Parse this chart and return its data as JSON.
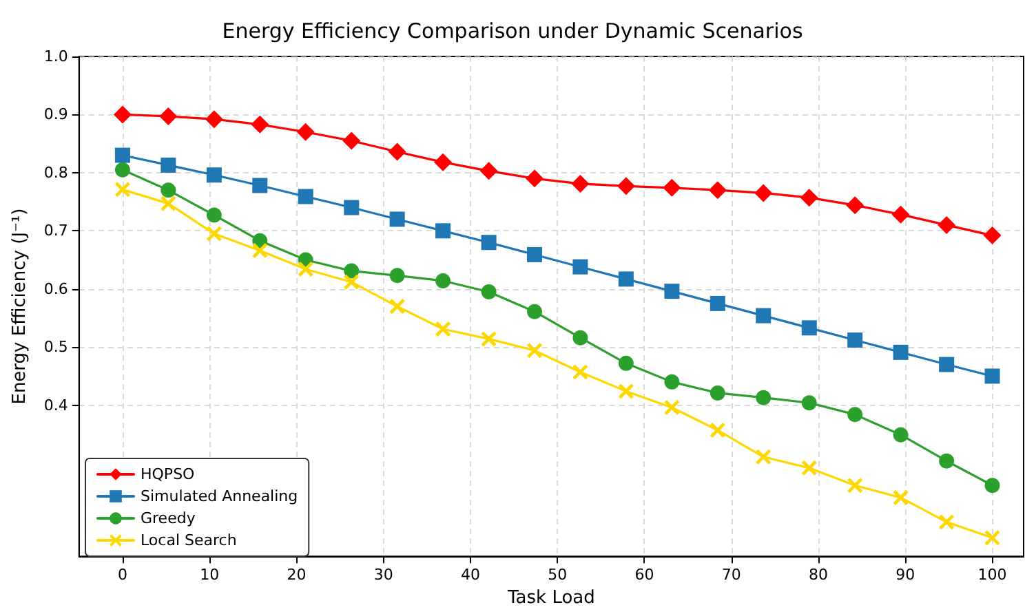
{
  "chart_data": {
    "type": "line",
    "title": "Energy Efficiency Comparison under Dynamic Scenarios",
    "xlabel": "Task Load",
    "ylabel": "Energy Efficiency (J⁻¹)",
    "x": [
      0,
      5.26,
      10.53,
      15.79,
      21.05,
      26.32,
      31.58,
      36.84,
      42.11,
      47.37,
      52.63,
      57.89,
      63.16,
      68.42,
      73.68,
      78.95,
      84.21,
      89.47,
      94.74,
      100
    ],
    "series": [
      {
        "name": "HQPSO",
        "color": "#ff0000",
        "marker": "diamond",
        "values": [
          0.9,
          0.897,
          0.892,
          0.883,
          0.87,
          0.855,
          0.836,
          0.818,
          0.803,
          0.79,
          0.781,
          0.777,
          0.774,
          0.77,
          0.765,
          0.757,
          0.744,
          0.728,
          0.71,
          0.692
        ]
      },
      {
        "name": "Simulated Annealing",
        "color": "#1f77b4",
        "marker": "square",
        "values": [
          0.83,
          0.813,
          0.796,
          0.778,
          0.759,
          0.74,
          0.72,
          0.7,
          0.68,
          0.659,
          0.638,
          0.617,
          0.596,
          0.575,
          0.554,
          0.533,
          0.512,
          0.491,
          0.47,
          0.45
        ]
      },
      {
        "name": "Greedy",
        "color": "#2ca02c",
        "marker": "circle",
        "values": [
          0.805,
          0.77,
          0.727,
          0.683,
          0.65,
          0.631,
          0.623,
          0.614,
          0.595,
          0.561,
          0.516,
          0.472,
          0.44,
          0.421,
          0.413,
          0.404,
          0.384,
          0.349,
          0.304,
          0.262
        ]
      },
      {
        "name": "Local Search",
        "color": "#ffd700",
        "marker": "cross",
        "values": [
          0.771,
          0.747,
          0.695,
          0.666,
          0.634,
          0.612,
          0.57,
          0.531,
          0.514,
          0.494,
          0.457,
          0.424,
          0.396,
          0.357,
          0.311,
          0.292,
          0.262,
          0.241,
          0.199,
          0.172
        ]
      }
    ],
    "xlim": [
      -5,
      103.6
    ],
    "xticks": [
      0,
      10,
      20,
      30,
      40,
      50,
      60,
      70,
      80,
      90,
      100
    ],
    "ylim": [
      0.14,
      1.0
    ],
    "yticks": [
      {
        "value": 0.4,
        "label": "0.4"
      },
      {
        "value": 0.5,
        "label": "0.5"
      },
      {
        "value": 0.6,
        "label": "0.6"
      },
      {
        "value": 0.7,
        "label": "0.7"
      },
      {
        "value": 0.8,
        "label": "0.8"
      },
      {
        "value": 0.9,
        "label": "0.9"
      },
      {
        "value": 1,
        "label": "1.0"
      }
    ],
    "grid": true,
    "legend": "bottom left",
    "line_style": "solid"
  }
}
